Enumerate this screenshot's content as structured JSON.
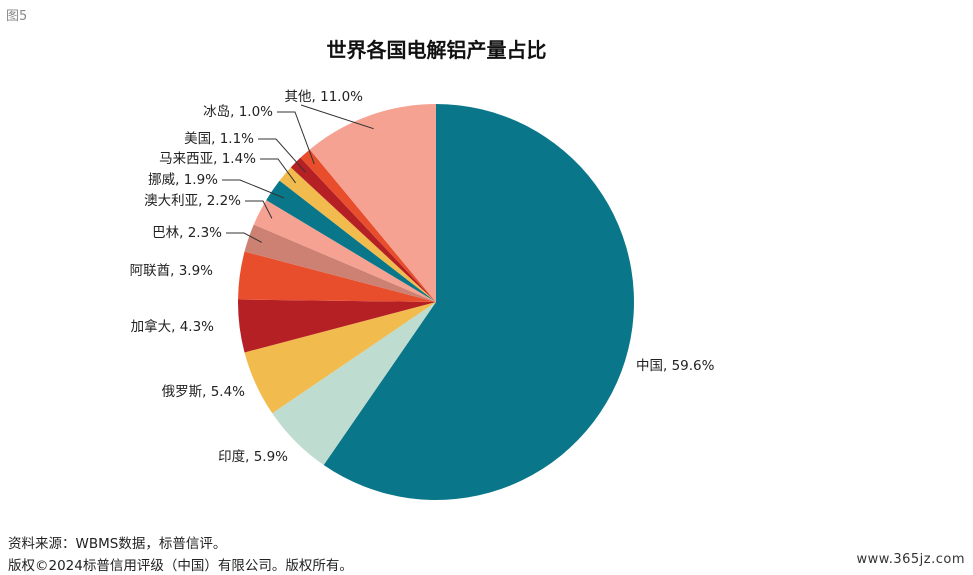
{
  "figure_label": "图5",
  "footer": {
    "source": "资料来源：WBMS数据，标普信评。",
    "copyright": "版权©2024标普信用评级（中国）有限公司。版权所有。"
  },
  "watermark": "www.365jz.com",
  "chart_data": {
    "type": "pie",
    "title": "世界各国电解铝产量占比",
    "start_angle_deg": 0,
    "direction": "clockwise",
    "slices": [
      {
        "label": "中国, 59.6%",
        "value": 59.6,
        "color": "#0a7689"
      },
      {
        "label": "印度, 5.9%",
        "value": 5.9,
        "color": "#bedccf"
      },
      {
        "label": "俄罗斯, 5.4%",
        "value": 5.4,
        "color": "#f1bb4e"
      },
      {
        "label": "加拿大, 4.3%",
        "value": 4.3,
        "color": "#b52025"
      },
      {
        "label": "阿联酋, 3.9%",
        "value": 3.9,
        "color": "#e84e2c"
      },
      {
        "label": "巴林, 2.3%",
        "value": 2.3,
        "color": "#cc8172"
      },
      {
        "label": "澳大利亚, 2.2%",
        "value": 2.2,
        "color": "#f6a293"
      },
      {
        "label": "挪威, 1.9%",
        "value": 1.9,
        "color": "#0a7689"
      },
      {
        "label": "马来西亚, 1.4%",
        "value": 1.4,
        "color": "#f1bb4e"
      },
      {
        "label": "美国, 1.1%",
        "value": 1.1,
        "color": "#b52025"
      },
      {
        "label": "冰岛, 1.0%",
        "value": 1.0,
        "color": "#e84e2c"
      },
      {
        "label": "其他, 11.0%",
        "value": 11.0,
        "color": "#f6a293"
      }
    ]
  }
}
